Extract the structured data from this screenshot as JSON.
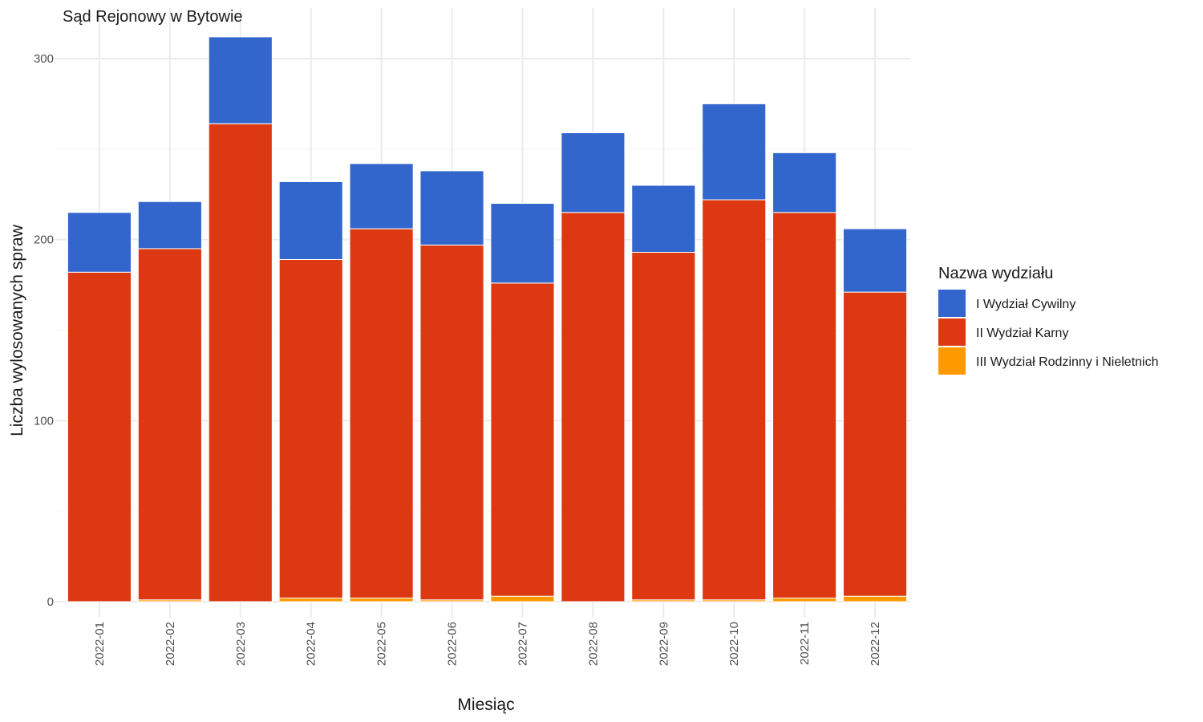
{
  "chart_data": {
    "type": "bar",
    "stacked": true,
    "title": "Sąd Rejonowy w Bytowie",
    "xlabel": "Miesiąc",
    "ylabel": "Liczba wylosowanych spraw",
    "ylim": [
      0,
      320
    ],
    "yticks": [
      0,
      100,
      200,
      300
    ],
    "grid": true,
    "legend": {
      "title": "Nazwa wydziału",
      "placement": "right"
    },
    "categories": [
      "2022-01",
      "2022-02",
      "2022-03",
      "2022-04",
      "2022-05",
      "2022-06",
      "2022-07",
      "2022-08",
      "2022-09",
      "2022-10",
      "2022-11",
      "2022-12"
    ],
    "series": [
      {
        "name": "III Wydział Rodzinny i Nieletnich",
        "color": "#FF9900",
        "values": [
          0,
          1,
          0,
          2,
          2,
          1,
          3,
          0,
          1,
          1,
          2,
          3
        ]
      },
      {
        "name": "II Wydział Karny",
        "color": "#DC3912",
        "values": [
          182,
          194,
          264,
          187,
          204,
          196,
          173,
          215,
          192,
          221,
          213,
          168
        ]
      },
      {
        "name": "I Wydział Cywilny",
        "color": "#3366CC",
        "values": [
          33,
          26,
          48,
          43,
          36,
          41,
          44,
          44,
          37,
          53,
          33,
          35
        ]
      }
    ],
    "legend_order": [
      "I Wydział Cywilny",
      "II Wydział Karny",
      "III Wydział Rodzinny i Nieletnich"
    ]
  }
}
